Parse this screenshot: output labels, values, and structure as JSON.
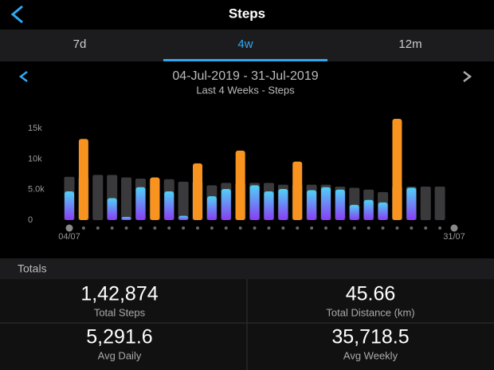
{
  "header": {
    "title": "Steps"
  },
  "tabs": [
    "7d",
    "4w",
    "12m"
  ],
  "date_range": "04-Jul-2019 - 31-Jul-2019",
  "subtitle": "Last 4 Weeks - Steps",
  "chart_data": {
    "type": "bar",
    "categories": [
      "04/07",
      null,
      null,
      null,
      null,
      null,
      null,
      null,
      null,
      null,
      null,
      null,
      null,
      null,
      null,
      null,
      null,
      null,
      null,
      null,
      null,
      null,
      null,
      null,
      null,
      null,
      null,
      "31/07"
    ],
    "series": [
      {
        "color": "#3a3a3c",
        "values": [
          7100,
          7000,
          7400,
          7400,
          7000,
          6800,
          6800,
          6700,
          6300,
          6300,
          5700,
          6100,
          6100,
          6100,
          6100,
          5800,
          5800,
          5800,
          5800,
          5500,
          5300,
          5000,
          4600,
          5500,
          5500,
          5500,
          5500,
          null
        ]
      },
      {
        "color": "#4fd1f5",
        "values": [
          4700,
          13300,
          0,
          3600,
          500,
          5400,
          7000,
          4700,
          700,
          9300,
          3900,
          5100,
          11400,
          5700,
          4700,
          5100,
          9600,
          4900,
          5400,
          5000,
          2500,
          3300,
          2900,
          16600,
          5300,
          0,
          0,
          null
        ]
      }
    ],
    "goal_met_color": "#f7931e",
    "ylim": [
      0,
      17000
    ],
    "yticks": [
      0,
      {
        "value": 5000,
        "label": "5.0k"
      },
      {
        "value": 10000,
        "label": "10k"
      },
      {
        "value": 15000,
        "label": "15k"
      }
    ],
    "grid": false
  },
  "totals": {
    "title": "Totals",
    "cells": [
      {
        "value": "1,42,874",
        "label": "Total Steps"
      },
      {
        "value": "45.66",
        "label": "Total Distance (km)"
      },
      {
        "value": "5,291.6",
        "label": "Avg Daily"
      },
      {
        "value": "35,718.5",
        "label": "Avg Weekly"
      }
    ]
  }
}
